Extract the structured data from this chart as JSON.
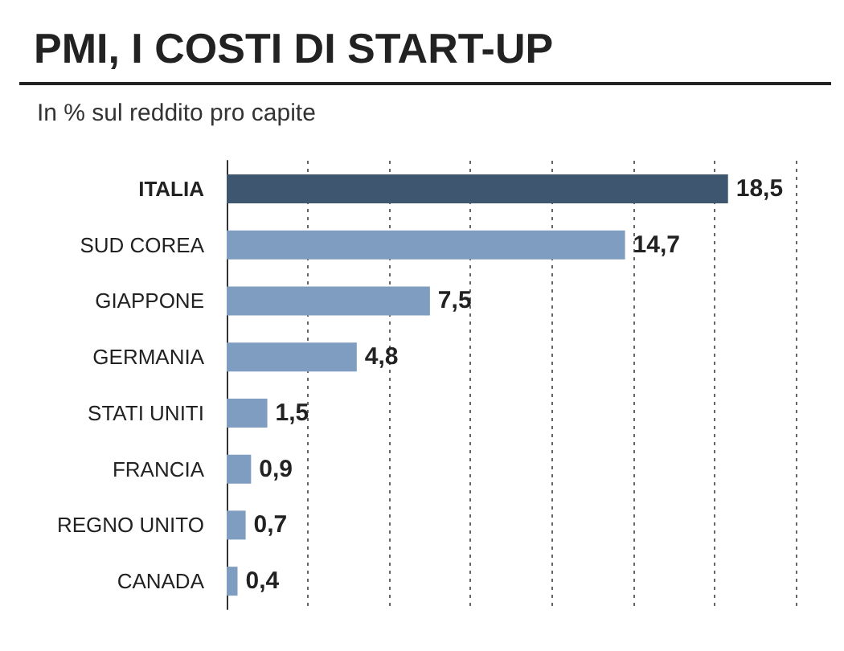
{
  "chart_data": {
    "type": "bar",
    "orientation": "horizontal",
    "title": "PMI, I COSTI DI START-UP",
    "subtitle": "In % sul reddito pro capite",
    "categories": [
      "ITALIA",
      "SUD COREA",
      "GIAPPONE",
      "GERMANIA",
      "STATI UNITI",
      "FRANCIA",
      "REGNO UNITO",
      "CANADA"
    ],
    "values": [
      18.5,
      14.7,
      7.5,
      4.8,
      1.5,
      0.9,
      0.7,
      0.4
    ],
    "colors": [
      "#3e566f",
      "#7f9dc0",
      "#7f9dc0",
      "#7f9dc0",
      "#7f9dc0",
      "#7f9dc0",
      "#7f9dc0",
      "#7f9dc0"
    ],
    "value_labels": [
      "18,5",
      "14,7",
      "7,5",
      "4,8",
      "1,5",
      "0,9",
      "0,7",
      "0,4"
    ],
    "xlim": [
      0,
      21
    ],
    "xticks": [
      {
        "value": 0,
        "label": null
      },
      {
        "value": 3,
        "label": null
      },
      {
        "value": 6,
        "label": null
      },
      {
        "value": 9,
        "label": null
      },
      {
        "value": 12,
        "label": null
      },
      {
        "value": 15,
        "label": null
      },
      {
        "value": 18,
        "label": null
      },
      {
        "value": 21,
        "label": null
      }
    ],
    "grid": "x",
    "tick_labels": "y"
  }
}
